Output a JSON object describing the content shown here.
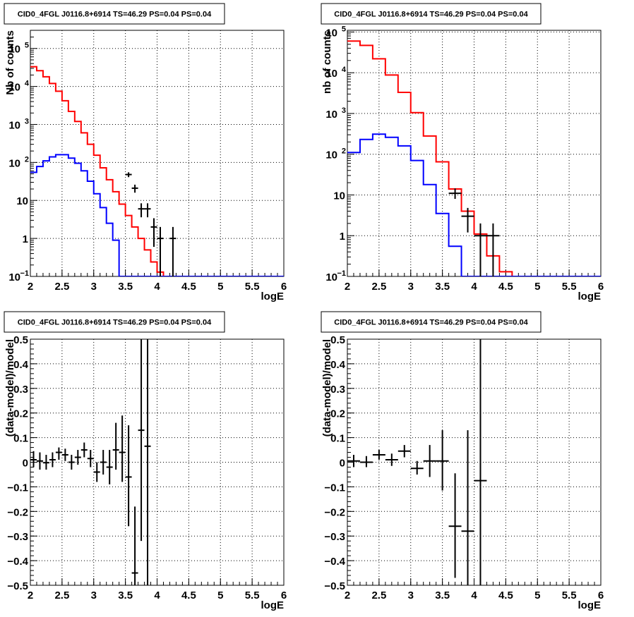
{
  "chart_data": [
    {
      "type": "step",
      "title": "CID0_4FGL J0116.8+6914 TS=46.29 PS=0.04 PS=0.04",
      "xlabel": "logE",
      "ylabel": "Nb of counts",
      "xlim": [
        2,
        6
      ],
      "ylim": [
        0.1,
        300000
      ],
      "yscale": "log",
      "grid": true,
      "xticks": [
        "2",
        "2.5",
        "3",
        "3.5",
        "4",
        "4.5",
        "5",
        "5.5",
        "6"
      ],
      "yticks": [
        {
          "v": 0.1,
          "label": "10",
          "exp": "−1"
        },
        {
          "v": 1,
          "label": "1",
          "exp": ""
        },
        {
          "v": 10,
          "label": "10",
          "exp": ""
        },
        {
          "v": 100,
          "label": "10",
          "exp": "2"
        },
        {
          "v": 1000,
          "label": "10",
          "exp": "3"
        },
        {
          "v": 10000,
          "label": "10",
          "exp": "4"
        },
        {
          "v": 100000,
          "label": "10",
          "exp": "5"
        }
      ],
      "bin_edges": [
        2.0,
        2.1,
        2.2,
        2.3,
        2.4,
        2.5,
        2.6,
        2.7,
        2.8,
        2.9,
        3.0,
        3.1,
        3.2,
        3.3,
        3.4,
        3.5,
        3.6,
        3.7,
        3.8,
        3.9,
        4.0,
        4.1,
        4.2,
        4.3,
        4.4,
        4.5,
        4.6,
        4.7,
        4.8,
        4.9,
        5.0,
        5.1,
        5.2,
        5.3,
        5.4,
        5.5,
        5.6,
        5.7,
        5.8,
        5.9,
        6.0
      ],
      "series": [
        {
          "color": "#ff0000",
          "values": [
            33000,
            26000,
            18000,
            12000,
            7500,
            4200,
            2200,
            1200,
            600,
            300,
            155,
            72,
            35,
            17,
            8.0,
            4.0,
            2.0,
            1.0,
            0.5,
            0.24,
            0.13,
            0.1,
            0.1,
            0.1,
            0.1,
            0.1,
            0.1,
            0.1,
            0.1,
            0.1,
            0.1,
            0.1,
            0.1,
            0.1,
            0.1,
            0.1,
            0.1,
            0.1,
            0.1,
            0.1
          ]
        },
        {
          "color": "#0000ff",
          "values": [
            55,
            78,
            110,
            140,
            160,
            160,
            130,
            95,
            60,
            32,
            15,
            6.5,
            2.5,
            0.9,
            0.1,
            0.1,
            0.1,
            0.1,
            0.1,
            0.1,
            0.1,
            0.1,
            0.1,
            0.1,
            0.1,
            0.1,
            0.1,
            0.1,
            0.1,
            0.1,
            0.1,
            0.1,
            0.1,
            0.1,
            0.1,
            0.1,
            0.1,
            0.1,
            0.1,
            0.1
          ]
        }
      ],
      "data_points": [
        {
          "x": 3.55,
          "y": 48,
          "lo": 41,
          "hi": 55,
          "xerr": 0.05
        },
        {
          "x": 3.65,
          "y": 21,
          "lo": 16,
          "hi": 26,
          "xerr": 0.05
        },
        {
          "x": 3.75,
          "y": 6,
          "lo": 3.6,
          "hi": 8.4,
          "xerr": 0.05
        },
        {
          "x": 3.85,
          "y": 6,
          "lo": 3.6,
          "hi": 8.4,
          "xerr": 0.05
        },
        {
          "x": 3.95,
          "y": 2,
          "lo": 0.6,
          "hi": 3.4,
          "xerr": 0.05
        },
        {
          "x": 4.05,
          "y": 1,
          "lo": 0.1,
          "hi": 2.0,
          "xerr": 0.05
        },
        {
          "x": 4.25,
          "y": 1,
          "lo": 0.1,
          "hi": 2.0,
          "xerr": 0.05
        }
      ]
    },
    {
      "type": "step",
      "title": "CID0_4FGL J0116.8+6914 TS=46.29 PS=0.04 PS=0.04",
      "xlabel": "logE",
      "ylabel": "nb of counts",
      "xlim": [
        2,
        6
      ],
      "ylim": [
        0.1,
        110000
      ],
      "yscale": "log",
      "grid": true,
      "xticks": [
        "2",
        "2.5",
        "3",
        "3.5",
        "4",
        "4.5",
        "5",
        "5.5",
        "6"
      ],
      "yticks": [
        {
          "v": 0.1,
          "label": "10",
          "exp": "−1"
        },
        {
          "v": 1,
          "label": "1",
          "exp": ""
        },
        {
          "v": 10,
          "label": "10",
          "exp": ""
        },
        {
          "v": 100,
          "label": "10",
          "exp": "2"
        },
        {
          "v": 1000,
          "label": "10",
          "exp": "3"
        },
        {
          "v": 10000,
          "label": "10",
          "exp": "4"
        },
        {
          "v": 100000,
          "label": "10",
          "exp": "5"
        }
      ],
      "bin_edges": [
        2.0,
        2.2,
        2.4,
        2.6,
        2.8,
        3.0,
        3.2,
        3.4,
        3.6,
        3.8,
        4.0,
        4.2,
        4.4,
        4.6,
        4.8,
        5.0,
        5.2,
        5.4,
        5.6,
        5.8,
        6.0
      ],
      "series": [
        {
          "color": "#ff0000",
          "values": [
            60000,
            47000,
            22000,
            8800,
            3300,
            1050,
            280,
            65,
            14,
            4.0,
            1.1,
            0.32,
            0.13,
            0.1,
            0.1,
            0.1,
            0.1,
            0.1,
            0.1,
            0.1
          ]
        },
        {
          "color": "#0000ff",
          "values": [
            110,
            230,
            310,
            260,
            160,
            70,
            18,
            3.5,
            0.55,
            0.1,
            0.1,
            0.1,
            0.1,
            0.1,
            0.1,
            0.1,
            0.1,
            0.1,
            0.1,
            0.1
          ]
        }
      ],
      "data_points": [
        {
          "x": 3.7,
          "y": 11,
          "lo": 8,
          "hi": 14.5,
          "xerr": 0.1
        },
        {
          "x": 3.9,
          "y": 3,
          "lo": 1.2,
          "hi": 4.8,
          "xerr": 0.1
        },
        {
          "x": 4.1,
          "y": 1,
          "lo": 0.1,
          "hi": 2.0,
          "xerr": 0.1
        },
        {
          "x": 4.3,
          "y": 1,
          "lo": 0.1,
          "hi": 2.0,
          "xerr": 0.1
        }
      ]
    },
    {
      "type": "scatter",
      "title": "CID0_4FGL J0116.8+6914 TS=46.29 PS=0.04 PS=0.04",
      "xlabel": "logE",
      "ylabel": "(data-model)/model",
      "xlim": [
        2,
        6
      ],
      "ylim": [
        -0.5,
        0.5
      ],
      "yscale": "linear",
      "grid": true,
      "xticks": [
        "2",
        "2.5",
        "3",
        "3.5",
        "4",
        "4.5",
        "5",
        "5.5",
        "6"
      ],
      "yticks": [
        {
          "v": -0.5,
          "label": "−0.5",
          "exp": ""
        },
        {
          "v": -0.4,
          "label": "−0.4",
          "exp": ""
        },
        {
          "v": -0.3,
          "label": "−0.3",
          "exp": ""
        },
        {
          "v": -0.2,
          "label": "−0.2",
          "exp": ""
        },
        {
          "v": -0.1,
          "label": "−0.1",
          "exp": ""
        },
        {
          "v": 0,
          "label": "0",
          "exp": ""
        },
        {
          "v": 0.1,
          "label": "0.1",
          "exp": ""
        },
        {
          "v": 0.2,
          "label": "0.2",
          "exp": ""
        },
        {
          "v": 0.3,
          "label": "0.3",
          "exp": ""
        },
        {
          "v": 0.4,
          "label": "0.4",
          "exp": ""
        },
        {
          "v": 0.5,
          "label": "0.5",
          "exp": ""
        }
      ],
      "data_points": [
        {
          "x": 2.05,
          "y": 0.01,
          "lo": -0.02,
          "hi": 0.045,
          "xerr": 0.05
        },
        {
          "x": 2.15,
          "y": 0.005,
          "lo": -0.03,
          "hi": 0.04,
          "xerr": 0.05
        },
        {
          "x": 2.25,
          "y": -0.002,
          "lo": -0.03,
          "hi": 0.03,
          "xerr": 0.05
        },
        {
          "x": 2.35,
          "y": 0.01,
          "lo": -0.02,
          "hi": 0.04,
          "xerr": 0.05
        },
        {
          "x": 2.45,
          "y": 0.04,
          "lo": 0.01,
          "hi": 0.06,
          "xerr": 0.05
        },
        {
          "x": 2.55,
          "y": 0.03,
          "lo": 0.005,
          "hi": 0.055,
          "xerr": 0.05
        },
        {
          "x": 2.65,
          "y": 0.0,
          "lo": -0.03,
          "hi": 0.03,
          "xerr": 0.05
        },
        {
          "x": 2.75,
          "y": 0.02,
          "lo": -0.01,
          "hi": 0.05,
          "xerr": 0.05
        },
        {
          "x": 2.85,
          "y": 0.05,
          "lo": 0.02,
          "hi": 0.08,
          "xerr": 0.05
        },
        {
          "x": 2.95,
          "y": 0.015,
          "lo": -0.02,
          "hi": 0.05,
          "xerr": 0.05
        },
        {
          "x": 3.05,
          "y": -0.04,
          "lo": -0.08,
          "hi": 0.0,
          "xerr": 0.05
        },
        {
          "x": 3.15,
          "y": 0.0,
          "lo": -0.05,
          "hi": 0.05,
          "xerr": 0.05
        },
        {
          "x": 3.25,
          "y": -0.02,
          "lo": -0.09,
          "hi": 0.05,
          "xerr": 0.05
        },
        {
          "x": 3.35,
          "y": 0.05,
          "lo": -0.03,
          "hi": 0.16,
          "xerr": 0.05
        },
        {
          "x": 3.45,
          "y": 0.04,
          "lo": -0.08,
          "hi": 0.19,
          "xerr": 0.05
        },
        {
          "x": 3.55,
          "y": -0.06,
          "lo": -0.26,
          "hi": 0.15,
          "xerr": 0.05
        },
        {
          "x": 3.65,
          "y": -0.45,
          "lo": -0.5,
          "hi": -0.18,
          "xerr": 0.05
        },
        {
          "x": 3.75,
          "y": 0.13,
          "lo": -0.32,
          "hi": 0.5,
          "xerr": 0.05
        },
        {
          "x": 3.85,
          "y": 0.065,
          "lo": -0.5,
          "hi": 0.5,
          "xerr": 0.05
        }
      ]
    },
    {
      "type": "scatter",
      "title": "CID0_4FGL J0116.8+6914 TS=46.29 PS=0.04 PS=0.04",
      "xlabel": "logE",
      "ylabel": "(data-model)/model",
      "xlim": [
        2,
        6
      ],
      "ylim": [
        -0.5,
        0.5
      ],
      "yscale": "linear",
      "grid": true,
      "xticks": [
        "2",
        "2.5",
        "3",
        "3.5",
        "4",
        "4.5",
        "5",
        "5.5",
        "6"
      ],
      "yticks": [
        {
          "v": -0.5,
          "label": "−0.5",
          "exp": ""
        },
        {
          "v": -0.4,
          "label": "−0.4",
          "exp": ""
        },
        {
          "v": -0.3,
          "label": "−0.3",
          "exp": ""
        },
        {
          "v": -0.2,
          "label": "−0.2",
          "exp": ""
        },
        {
          "v": -0.1,
          "label": "−0.1",
          "exp": ""
        },
        {
          "v": 0,
          "label": "0",
          "exp": ""
        },
        {
          "v": 0.1,
          "label": "0.1",
          "exp": ""
        },
        {
          "v": 0.2,
          "label": "0.2",
          "exp": ""
        },
        {
          "v": 0.3,
          "label": "0.3",
          "exp": ""
        },
        {
          "v": 0.4,
          "label": "0.4",
          "exp": ""
        },
        {
          "v": 0.5,
          "label": "0.5",
          "exp": ""
        }
      ],
      "data_points": [
        {
          "x": 2.1,
          "y": 0.005,
          "lo": -0.02,
          "hi": 0.03,
          "xerr": 0.1
        },
        {
          "x": 2.3,
          "y": 0.0,
          "lo": -0.02,
          "hi": 0.025,
          "xerr": 0.1
        },
        {
          "x": 2.5,
          "y": 0.03,
          "lo": 0.01,
          "hi": 0.05,
          "xerr": 0.1
        },
        {
          "x": 2.7,
          "y": 0.01,
          "lo": -0.015,
          "hi": 0.035,
          "xerr": 0.1
        },
        {
          "x": 2.9,
          "y": 0.045,
          "lo": 0.02,
          "hi": 0.07,
          "xerr": 0.1
        },
        {
          "x": 3.1,
          "y": -0.025,
          "lo": -0.05,
          "hi": 0.005,
          "xerr": 0.1
        },
        {
          "x": 3.3,
          "y": 0.005,
          "lo": -0.06,
          "hi": 0.07,
          "xerr": 0.1
        },
        {
          "x": 3.5,
          "y": 0.005,
          "lo": -0.115,
          "hi": 0.13,
          "xerr": 0.1
        },
        {
          "x": 3.7,
          "y": -0.26,
          "lo": -0.47,
          "hi": -0.045,
          "xerr": 0.1
        },
        {
          "x": 3.9,
          "y": -0.28,
          "lo": -0.5,
          "hi": 0.13,
          "xerr": 0.1
        },
        {
          "x": 4.1,
          "y": -0.075,
          "lo": -0.5,
          "hi": 0.5,
          "xerr": 0.1
        }
      ]
    }
  ]
}
